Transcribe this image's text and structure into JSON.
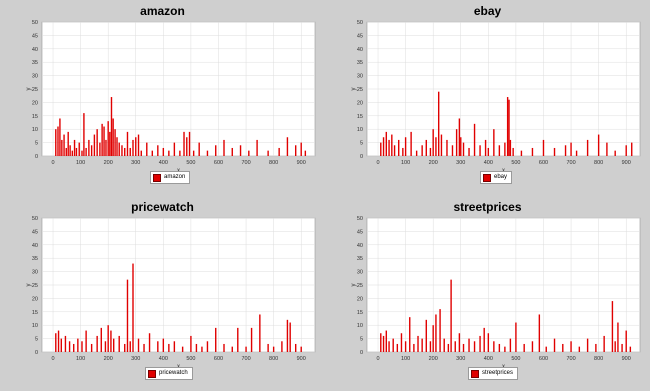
{
  "colors": {
    "bar": "#e00000",
    "background": "#cfcfcf",
    "plot_bg": "#ffffff",
    "grid": "#dddddd"
  },
  "chart_data": [
    {
      "type": "bar",
      "title": "amazon",
      "xlabel": "x",
      "ylabel": "y",
      "xlim": [
        -40,
        950
      ],
      "ylim": [
        0,
        50
      ],
      "x_ticks": [
        0,
        100,
        200,
        300,
        400,
        500,
        600,
        700,
        800,
        900
      ],
      "y_ticks": [
        0,
        5,
        10,
        15,
        20,
        25,
        30,
        35,
        40,
        45,
        50
      ],
      "legend": "bottom",
      "grid": true,
      "series": [
        {
          "name": "amazon",
          "x": [
            10,
            18,
            25,
            32,
            40,
            48,
            55,
            62,
            70,
            78,
            85,
            95,
            105,
            112,
            120,
            130,
            140,
            150,
            160,
            170,
            178,
            185,
            192,
            200,
            206,
            212,
            218,
            225,
            232,
            240,
            250,
            260,
            270,
            280,
            290,
            300,
            310,
            320,
            340,
            360,
            380,
            400,
            420,
            440,
            460,
            475,
            485,
            495,
            510,
            530,
            560,
            590,
            620,
            650,
            680,
            710,
            740,
            780,
            820,
            850,
            880,
            900,
            915
          ],
          "y": [
            10,
            11,
            14,
            6,
            8,
            3,
            9,
            4,
            2,
            6,
            3,
            5,
            2,
            16,
            3,
            6,
            4,
            8,
            10,
            5,
            12,
            11,
            6,
            13,
            9,
            22,
            14,
            10,
            7,
            5,
            4,
            3,
            9,
            3,
            6,
            7,
            8,
            2,
            5,
            2,
            4,
            3,
            2,
            5,
            2,
            9,
            7,
            9,
            2,
            5,
            2,
            4,
            6,
            3,
            4,
            2,
            6,
            2,
            3,
            7,
            4,
            5,
            2
          ]
        }
      ]
    },
    {
      "type": "bar",
      "title": "ebay",
      "xlabel": "x",
      "ylabel": "y",
      "xlim": [
        -40,
        950
      ],
      "ylim": [
        0,
        50
      ],
      "x_ticks": [
        0,
        100,
        200,
        300,
        400,
        500,
        600,
        700,
        800,
        900
      ],
      "y_ticks": [
        0,
        5,
        10,
        15,
        20,
        25,
        30,
        35,
        40,
        45,
        50
      ],
      "legend": "bottom",
      "grid": true,
      "series": [
        {
          "name": "ebay",
          "x": [
            10,
            20,
            30,
            40,
            50,
            60,
            75,
            90,
            100,
            120,
            140,
            160,
            175,
            190,
            200,
            210,
            220,
            230,
            250,
            270,
            285,
            295,
            300,
            310,
            330,
            350,
            370,
            390,
            400,
            420,
            440,
            460,
            470,
            475,
            480,
            490,
            520,
            560,
            600,
            640,
            680,
            700,
            720,
            760,
            800,
            830,
            860,
            900,
            920
          ],
          "y": [
            5,
            7,
            9,
            6,
            8,
            4,
            6,
            3,
            7,
            9,
            2,
            4,
            6,
            3,
            10,
            7,
            24,
            8,
            6,
            4,
            10,
            14,
            7,
            5,
            3,
            12,
            4,
            6,
            3,
            10,
            4,
            5,
            22,
            21,
            6,
            3,
            2,
            3,
            6,
            3,
            4,
            5,
            2,
            6,
            8,
            5,
            2,
            4,
            5
          ]
        }
      ]
    },
    {
      "type": "bar",
      "title": "pricewatch",
      "xlabel": "x",
      "ylabel": "y",
      "xlim": [
        -40,
        950
      ],
      "ylim": [
        0,
        50
      ],
      "x_ticks": [
        0,
        100,
        200,
        300,
        400,
        500,
        600,
        700,
        800,
        900
      ],
      "y_ticks": [
        0,
        5,
        10,
        15,
        20,
        25,
        30,
        35,
        40,
        45,
        50
      ],
      "legend": "bottom",
      "grid": true,
      "series": [
        {
          "name": "pricewatch",
          "x": [
            10,
            20,
            30,
            45,
            60,
            75,
            90,
            105,
            120,
            140,
            160,
            175,
            190,
            200,
            210,
            220,
            240,
            260,
            270,
            280,
            290,
            310,
            330,
            350,
            380,
            400,
            420,
            440,
            470,
            500,
            520,
            540,
            560,
            590,
            620,
            650,
            670,
            700,
            720,
            750,
            780,
            800,
            830,
            850,
            860,
            880,
            900
          ],
          "y": [
            7,
            8,
            5,
            6,
            4,
            3,
            5,
            4,
            8,
            3,
            6,
            9,
            4,
            10,
            8,
            5,
            6,
            3,
            27,
            4,
            33,
            5,
            3,
            7,
            4,
            5,
            3,
            4,
            2,
            6,
            3,
            2,
            4,
            9,
            3,
            2,
            9,
            2,
            9,
            14,
            3,
            2,
            4,
            12,
            11,
            3,
            2
          ]
        }
      ]
    },
    {
      "type": "bar",
      "title": "streetprices",
      "xlabel": "x",
      "ylabel": "y",
      "xlim": [
        -40,
        950
      ],
      "ylim": [
        0,
        50
      ],
      "x_ticks": [
        0,
        100,
        200,
        300,
        400,
        500,
        600,
        700,
        800,
        900
      ],
      "y_ticks": [
        0,
        5,
        10,
        15,
        20,
        25,
        30,
        35,
        40,
        45,
        50
      ],
      "legend": "bottom",
      "grid": true,
      "series": [
        {
          "name": "streetprices",
          "x": [
            10,
            20,
            30,
            40,
            55,
            70,
            85,
            100,
            115,
            130,
            145,
            160,
            175,
            190,
            200,
            210,
            225,
            240,
            255,
            265,
            280,
            295,
            310,
            330,
            350,
            370,
            385,
            400,
            420,
            440,
            460,
            480,
            500,
            530,
            560,
            585,
            610,
            640,
            670,
            700,
            730,
            760,
            790,
            820,
            850,
            860,
            870,
            885,
            900,
            915
          ],
          "y": [
            7,
            6,
            8,
            4,
            5,
            3,
            7,
            4,
            13,
            3,
            6,
            5,
            12,
            4,
            10,
            14,
            16,
            5,
            3,
            27,
            4,
            7,
            3,
            5,
            4,
            6,
            9,
            7,
            4,
            3,
            2,
            5,
            11,
            3,
            4,
            14,
            2,
            5,
            3,
            4,
            2,
            5,
            3,
            6,
            19,
            4,
            11,
            3,
            8,
            2
          ]
        }
      ]
    }
  ]
}
